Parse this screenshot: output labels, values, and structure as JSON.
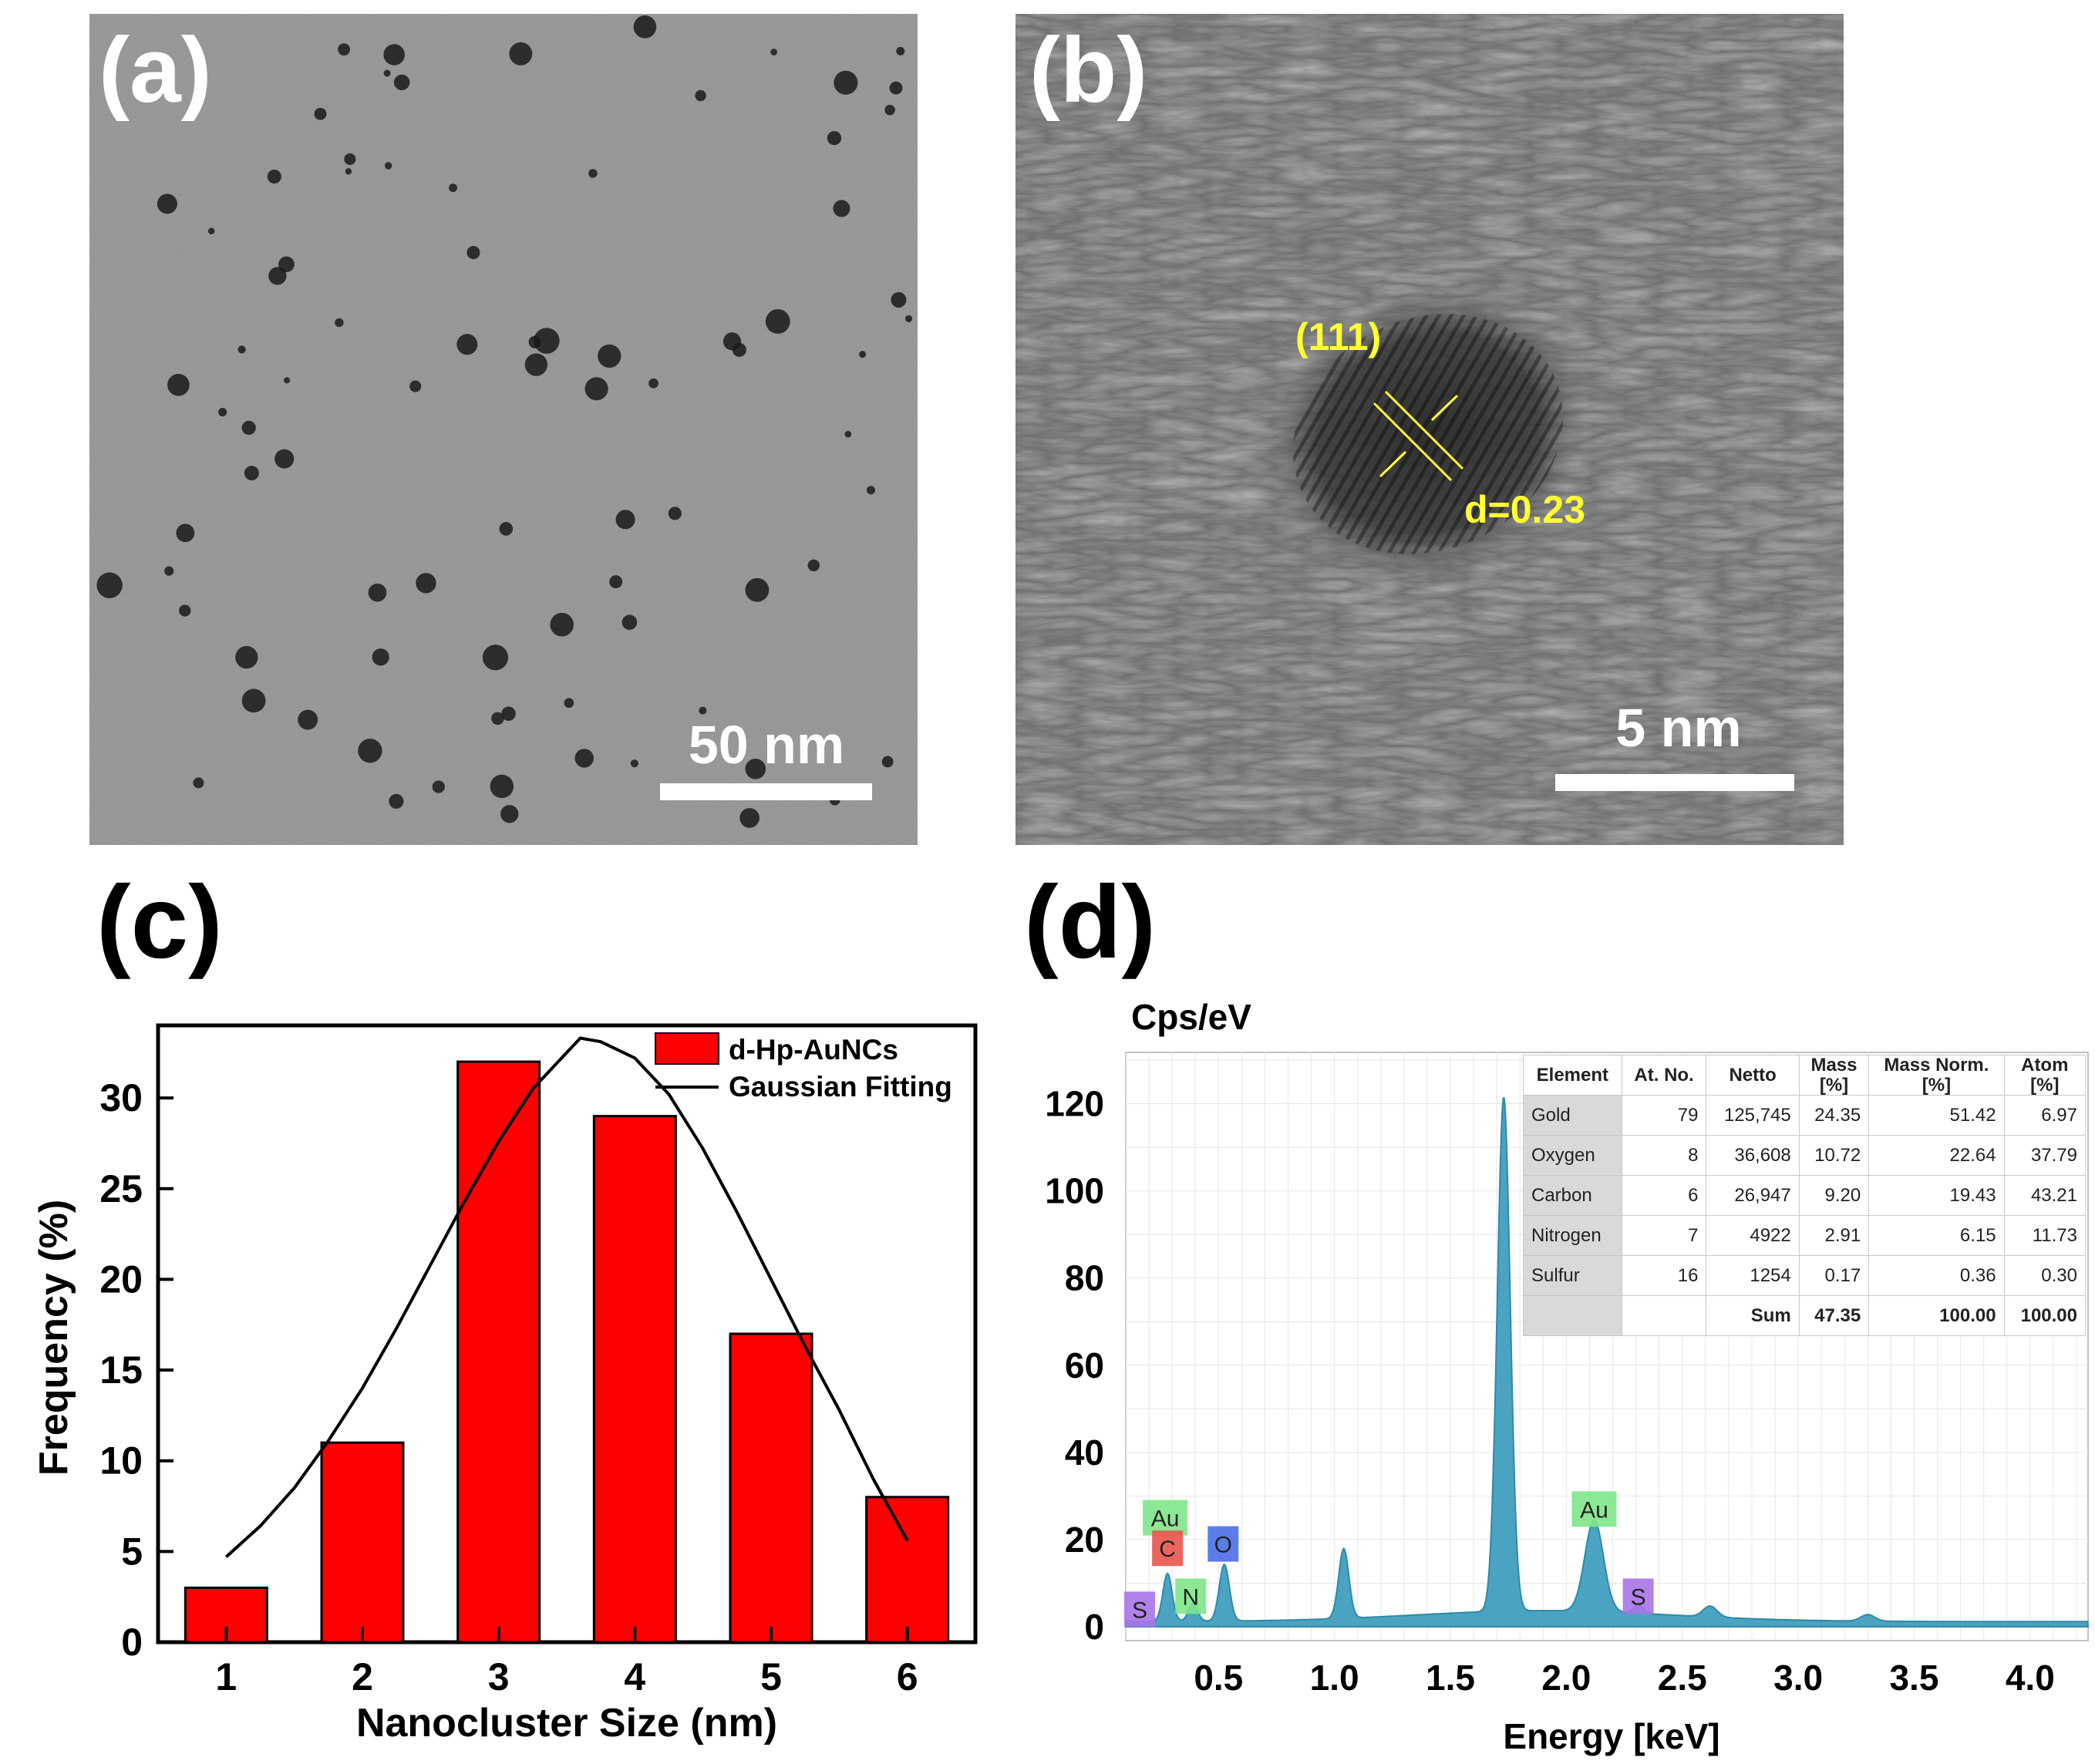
{
  "panels": {
    "a": {
      "label": "(a)",
      "scale_bar_text": "50 nm"
    },
    "b": {
      "label": "(b)",
      "plane_label": "(111)",
      "spacing_label": "d=0.23",
      "scale_bar_text": "5 nm"
    },
    "c": {
      "label": "(c)"
    },
    "d": {
      "label": "(d)"
    }
  },
  "chart_data": [
    {
      "type": "bar",
      "title": "",
      "xlabel": "Nanocluster Size (nm)",
      "ylabel": "Frequency (%)",
      "categories": [
        "1",
        "2",
        "3",
        "4",
        "5",
        "6"
      ],
      "x": [
        1,
        2,
        3,
        4,
        5,
        6
      ],
      "series": [
        {
          "name": "d-Hp-AuNCs",
          "values": [
            3,
            11,
            32,
            29,
            17,
            8
          ],
          "color": "#ff0000"
        }
      ],
      "fit": {
        "name": "Gaussian Fitting",
        "type": "line",
        "x": [
          1.0,
          1.25,
          1.5,
          1.75,
          2.0,
          2.25,
          2.5,
          2.75,
          3.0,
          3.25,
          3.5,
          3.6,
          3.75,
          4.0,
          4.25,
          4.5,
          4.75,
          5.0,
          5.25,
          5.5,
          5.75,
          6.0
        ],
        "y": [
          4.7,
          6.4,
          8.5,
          11.1,
          14.0,
          17.3,
          20.8,
          24.3,
          27.6,
          30.5,
          32.5,
          33.3,
          33.1,
          32.2,
          30.2,
          27.2,
          23.7,
          20.0,
          16.3,
          12.8,
          9.0,
          5.6
        ],
        "color": "#000000"
      },
      "xlim": [
        0.5,
        6.5
      ],
      "ylim": [
        0,
        34
      ],
      "yticks": [
        0,
        5,
        10,
        15,
        20,
        25,
        30
      ],
      "legend": "top-right"
    },
    {
      "type": "area",
      "title": "",
      "xlabel": "Energy [keV]",
      "ylabel": "Cps/eV",
      "xlim": [
        0.1,
        4.25
      ],
      "ylim": [
        0,
        130
      ],
      "xticks": [
        "0.5",
        "1.0",
        "1.5",
        "2.0",
        "2.5",
        "3.0",
        "3.5",
        "4.0"
      ],
      "yticks": [
        "0",
        "20",
        "40",
        "60",
        "80",
        "100",
        "120"
      ],
      "grid": true,
      "color": "#4aa3c0",
      "peaks": [
        {
          "x": 0.17,
          "y": 1
        },
        {
          "x": 0.28,
          "y": 12
        },
        {
          "x": 0.39,
          "y": 5
        },
        {
          "x": 0.525,
          "y": 14
        },
        {
          "x": 1.04,
          "y": 17
        },
        {
          "x": 1.73,
          "y": 119
        },
        {
          "x": 2.12,
          "y": 22
        },
        {
          "x": 2.31,
          "y": 3
        },
        {
          "x": 2.62,
          "y": 3.5
        },
        {
          "x": 3.3,
          "y": 2.5
        }
      ],
      "element_tags": [
        {
          "label": "S",
          "x": 0.16,
          "y": 4,
          "color": "#a874e8"
        },
        {
          "label": "Au",
          "x": 0.27,
          "y": 25,
          "color": "#7ee68a"
        },
        {
          "label": "C",
          "x": 0.28,
          "y": 18,
          "color": "#e8554a"
        },
        {
          "label": "N",
          "x": 0.38,
          "y": 7,
          "color": "#7ee68a"
        },
        {
          "label": "O",
          "x": 0.52,
          "y": 19,
          "color": "#4a6ee8"
        },
        {
          "label": "Au",
          "x": 2.12,
          "y": 27,
          "color": "#7ee68a"
        },
        {
          "label": "S",
          "x": 2.31,
          "y": 7,
          "color": "#a874e8"
        }
      ],
      "table": {
        "headers": [
          "Element",
          "At. No.",
          "Netto",
          "Mass\n[%]",
          "Mass Norm.\n[%]",
          "Atom\n[%]"
        ],
        "rows": [
          [
            "Gold",
            "79",
            "125,745",
            "24.35",
            "51.42",
            "6.97"
          ],
          [
            "Oxygen",
            "8",
            "36,608",
            "10.72",
            "22.64",
            "37.79"
          ],
          [
            "Carbon",
            "6",
            "26,947",
            "9.20",
            "19.43",
            "43.21"
          ],
          [
            "Nitrogen",
            "7",
            "4922",
            "2.91",
            "6.15",
            "11.73"
          ],
          [
            "Sulfur",
            "16",
            "1254",
            "0.17",
            "0.36",
            "0.30"
          ]
        ],
        "sum_row": [
          "",
          "",
          "Sum",
          "47.35",
          "100.00",
          "100.00"
        ]
      }
    }
  ]
}
